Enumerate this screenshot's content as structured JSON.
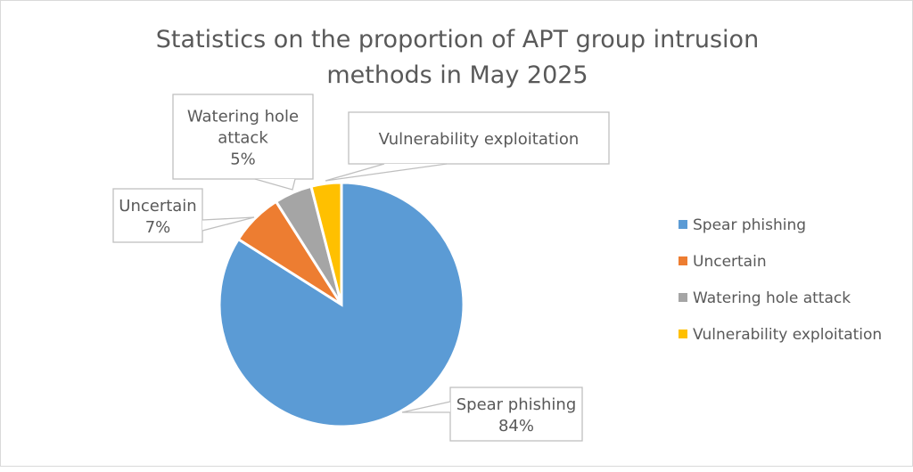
{
  "chart_data": {
    "type": "pie",
    "title": "Statistics on the proportion of APT group intrusion methods in May 2025",
    "title_lines": [
      "Statistics on the proportion of APT group intrusion",
      "methods in May 2025"
    ],
    "slices": [
      {
        "name": "Spear phishing",
        "value": 84,
        "label": "84%",
        "color": "#5B9BD5"
      },
      {
        "name": "Uncertain",
        "value": 7,
        "label": "7%",
        "color": "#ED7D31"
      },
      {
        "name": "Watering hole attack",
        "value": 5,
        "label": "5%",
        "color": "#A5A5A5"
      },
      {
        "name": "Vulnerability exploitation",
        "value": 4,
        "label": "",
        "color": "#FFC000"
      }
    ],
    "legend_position": "right"
  }
}
